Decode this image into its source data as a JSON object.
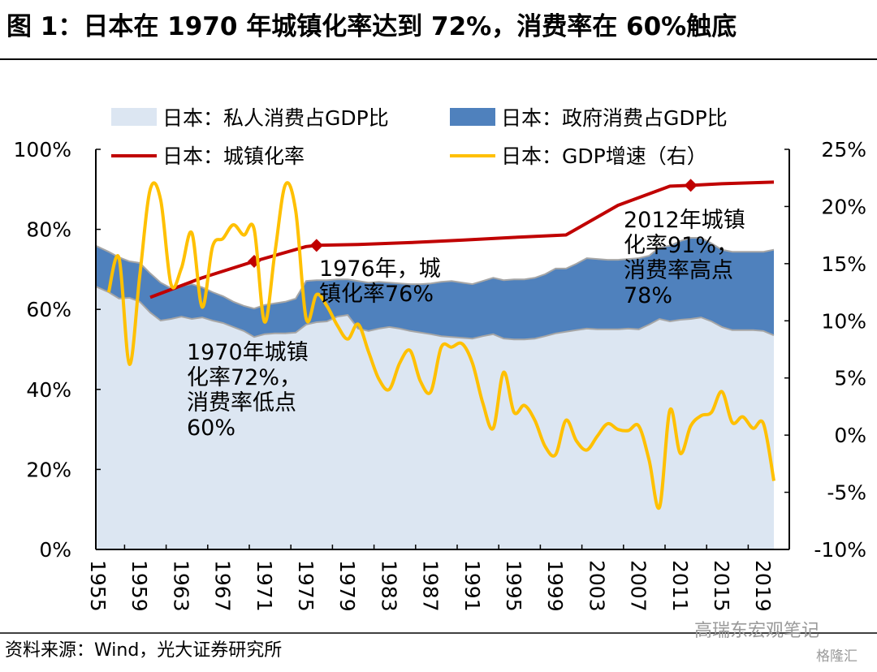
{
  "title": "图 1：日本在 1970 年城镇化率达到 72%，消费率在 60%触底",
  "source": "资料来源：Wind，光大证券研究所",
  "watermark": [
    "高瑞东宏观笔记",
    "格隆汇"
  ],
  "colors": {
    "private": "#dce6f2",
    "government": "#4f81bd",
    "urbanization": "#c00000",
    "gdp": "#ffc000",
    "boundary": "#a6a6a6"
  },
  "chart_data": {
    "type": "area+line",
    "title": "",
    "legend_position": "top",
    "grid": false,
    "left_axis": {
      "ylim": [
        0,
        100
      ],
      "ticks": [
        "100%",
        "80%",
        "60%",
        "40%",
        "20%",
        "0%"
      ]
    },
    "right_axis": {
      "ylim": [
        -10,
        25
      ],
      "ticks": [
        "25%",
        "20%",
        "15%",
        "10%",
        "5%",
        "0%",
        "-5%",
        "-10%"
      ]
    },
    "x_ticks": [
      "1955",
      "1959",
      "1963",
      "1967",
      "1971",
      "1975",
      "1979",
      "1983",
      "1987",
      "1991",
      "1995",
      "1999",
      "2003",
      "2007",
      "2011",
      "2015",
      "2019"
    ],
    "years_start": 1955,
    "series": [
      {
        "name": "日本：私人消费占GDP比",
        "type": "stacked-area",
        "axis": "left",
        "start": 1955,
        "values": [
          65.7,
          64.3,
          62.7,
          62.9,
          61.9,
          59.2,
          57.2,
          57.6,
          58.2,
          57.6,
          58.0,
          57.2,
          56.6,
          55.6,
          54.6,
          53.1,
          53.8,
          54.0,
          54.0,
          54.2,
          56.2,
          56.8,
          57.0,
          58.2,
          58.6,
          55.2,
          54.6,
          55.2,
          55.6,
          55.2,
          54.6,
          54.2,
          53.8,
          53.3,
          53.1,
          52.9,
          52.7,
          53.3,
          53.8,
          52.7,
          52.5,
          52.5,
          52.7,
          53.3,
          54.0,
          54.4,
          54.8,
          55.2,
          55.0,
          55.0,
          55.0,
          55.2,
          55.0,
          56.2,
          57.6,
          57.0,
          57.4,
          57.6,
          58.0,
          57.0,
          55.6,
          54.8,
          54.8,
          54.8,
          54.6,
          53.5
        ]
      },
      {
        "name": "日本：政府消费占GDP比",
        "type": "stacked-area",
        "axis": "left",
        "start": 1955,
        "values": [
          10.2,
          10.1,
          10.3,
          9.1,
          9.7,
          9.8,
          9.5,
          7.7,
          7.7,
          8.7,
          7.5,
          7.1,
          6.7,
          6.3,
          6.3,
          7.1,
          7.3,
          7.5,
          7.9,
          8.5,
          10.9,
          10.5,
          10.3,
          9.3,
          8.9,
          11.9,
          12.1,
          11.7,
          11.1,
          11.3,
          11.7,
          12.1,
          12.7,
          13.6,
          14.0,
          13.8,
          13.6,
          13.8,
          14.1,
          14.6,
          15.0,
          15.0,
          15.2,
          15.5,
          16.2,
          15.8,
          16.6,
          17.6,
          17.6,
          17.4,
          17.4,
          17.4,
          17.8,
          17.2,
          17.9,
          18.9,
          19.7,
          20.3,
          19.9,
          19.5,
          19.3,
          19.6,
          19.6,
          19.6,
          19.8,
          21.4
        ]
      },
      {
        "name": "日本：城镇化率",
        "type": "line",
        "axis": "left",
        "points": [
          [
            1960,
            63.0
          ],
          [
            1965,
            67.9
          ],
          [
            1970,
            72.0
          ],
          [
            1975,
            75.7
          ],
          [
            1976,
            76.0
          ],
          [
            1980,
            76.2
          ],
          [
            1985,
            76.7
          ],
          [
            1990,
            77.3
          ],
          [
            1995,
            78.0
          ],
          [
            2000,
            78.6
          ],
          [
            2005,
            86.0
          ],
          [
            2010,
            90.8
          ],
          [
            2012,
            91.0
          ],
          [
            2015,
            91.4
          ],
          [
            2020,
            91.8
          ]
        ],
        "markers": [
          [
            1970,
            72.0
          ],
          [
            1976,
            76.0
          ],
          [
            2012,
            91.0
          ]
        ]
      },
      {
        "name": "日本：GDP增速（右）",
        "type": "line",
        "axis": "right",
        "start": 1956,
        "values": [
          12.5,
          15.5,
          6.2,
          14.0,
          21.5,
          20.6,
          13.2,
          14.6,
          17.7,
          11.2,
          16.5,
          17.2,
          18.4,
          17.5,
          18.0,
          9.9,
          16.0,
          21.9,
          19.6,
          10.2,
          12.3,
          11.3,
          9.6,
          8.4,
          9.7,
          7.3,
          4.9,
          4.0,
          6.3,
          7.4,
          4.7,
          3.8,
          7.7,
          7.7,
          8.0,
          6.3,
          2.8,
          0.6,
          5.5,
          2.0,
          2.6,
          1.3,
          -1.0,
          -1.7,
          1.3,
          -0.5,
          -1.3,
          -0.1,
          1.0,
          0.5,
          0.4,
          0.8,
          -2.2,
          -6.3,
          2.2,
          -1.6,
          0.8,
          1.7,
          2.0,
          3.8,
          1.1,
          1.6,
          0.6,
          1.0,
          -4.0
        ]
      }
    ],
    "annotations": [
      {
        "lines": [
          "1970年城镇",
          "化率72%，",
          "消费率低点",
          "60%"
        ]
      },
      {
        "lines": [
          "1976年，城",
          "镇化率76%"
        ]
      },
      {
        "lines": [
          "2012年城镇",
          "化率91%，",
          "消费率高点",
          "78%"
        ]
      }
    ]
  }
}
